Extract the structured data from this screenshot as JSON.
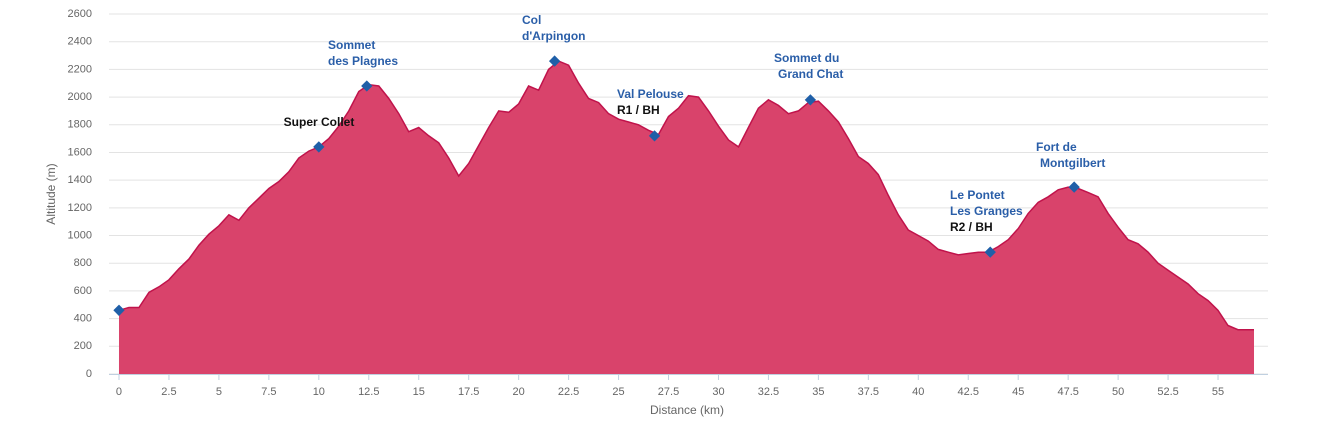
{
  "chart_data": {
    "type": "area",
    "xlabel": "Distance (km)",
    "ylabel": "Altitude (m)",
    "color": "#d9436b",
    "line_color": "#c0134b",
    "marker_color": "#1f5fa8",
    "grid": true,
    "xlim": [
      -0.5,
      57.5
    ],
    "ylim": [
      0,
      2600
    ],
    "xticks": [
      0,
      2.5,
      5,
      7.5,
      10,
      12.5,
      15,
      17.5,
      20,
      22.5,
      25,
      27.5,
      30,
      32.5,
      35,
      37.5,
      40,
      42.5,
      45,
      47.5,
      50,
      52.5,
      55
    ],
    "yticks": [
      0,
      200,
      400,
      600,
      800,
      1000,
      1200,
      1400,
      1600,
      1800,
      2000,
      2200,
      2400,
      2600
    ],
    "x": [
      0,
      0.5,
      1,
      1.5,
      2,
      2.5,
      3,
      3.5,
      4,
      4.5,
      5,
      5.5,
      6,
      6.5,
      7,
      7.5,
      8,
      8.5,
      9,
      9.5,
      10,
      10.5,
      11,
      11.5,
      12,
      12.5,
      13,
      13.5,
      14,
      14.5,
      15,
      15.5,
      16,
      16.5,
      17,
      17.5,
      18,
      18.5,
      19,
      19.5,
      20,
      20.5,
      21,
      21.5,
      22,
      22.5,
      23,
      23.5,
      24,
      24.5,
      25,
      25.5,
      26,
      26.5,
      27,
      27.5,
      28,
      28.5,
      29,
      29.5,
      30,
      30.5,
      31,
      31.5,
      32,
      32.5,
      33,
      33.5,
      34,
      34.5,
      35,
      35.5,
      36,
      36.5,
      37,
      37.5,
      38,
      38.5,
      39,
      39.5,
      40,
      40.5,
      41,
      41.5,
      42,
      42.5,
      43,
      43.5,
      44,
      44.5,
      45,
      45.5,
      46,
      46.5,
      47,
      47.5,
      48,
      48.5,
      49,
      49.5,
      50,
      50.5,
      51,
      51.5,
      52,
      52.5,
      53,
      53.5,
      54,
      54.5,
      55,
      55.5,
      56,
      56.8
    ],
    "values": [
      460,
      480,
      480,
      590,
      630,
      680,
      760,
      830,
      930,
      1010,
      1070,
      1150,
      1110,
      1200,
      1270,
      1340,
      1390,
      1460,
      1560,
      1610,
      1640,
      1700,
      1790,
      1900,
      2040,
      2090,
      2080,
      1990,
      1880,
      1750,
      1780,
      1720,
      1670,
      1560,
      1430,
      1520,
      1650,
      1780,
      1900,
      1890,
      1950,
      2080,
      2050,
      2200,
      2260,
      2230,
      2100,
      1990,
      1960,
      1880,
      1840,
      1820,
      1800,
      1760,
      1730,
      1860,
      1920,
      2010,
      2000,
      1900,
      1790,
      1690,
      1640,
      1780,
      1920,
      1980,
      1940,
      1880,
      1900,
      1960,
      1970,
      1900,
      1820,
      1700,
      1570,
      1520,
      1440,
      1290,
      1150,
      1040,
      1000,
      960,
      900,
      880,
      860,
      870,
      880,
      880,
      920,
      970,
      1050,
      1160,
      1240,
      1280,
      1330,
      1350,
      1340,
      1310,
      1280,
      1160,
      1060,
      970,
      940,
      880,
      800,
      750,
      700,
      650,
      580,
      530,
      460,
      350,
      320,
      320
    ],
    "waypoints": [
      {
        "x": 0,
        "y": 460
      },
      {
        "x": 10,
        "y": 1640,
        "note": "Super Collet"
      },
      {
        "x": 12.4,
        "y": 2080,
        "label": [
          "Sommet",
          "des Plagnes"
        ]
      },
      {
        "x": 21.8,
        "y": 2260,
        "label": [
          "Col",
          "d'Arpingon"
        ]
      },
      {
        "x": 26.8,
        "y": 1720,
        "label": [
          "Val Pelouse"
        ],
        "note": "R1 / BH"
      },
      {
        "x": 34.6,
        "y": 1980,
        "label": [
          "Sommet du",
          "Grand Chat"
        ]
      },
      {
        "x": 43.6,
        "y": 880,
        "label": [
          "Le Pontet",
          "Les Granges"
        ],
        "note": "R2 / BH"
      },
      {
        "x": 47.8,
        "y": 1350,
        "label": [
          "Fort de",
          "Montgilbert"
        ]
      }
    ]
  }
}
